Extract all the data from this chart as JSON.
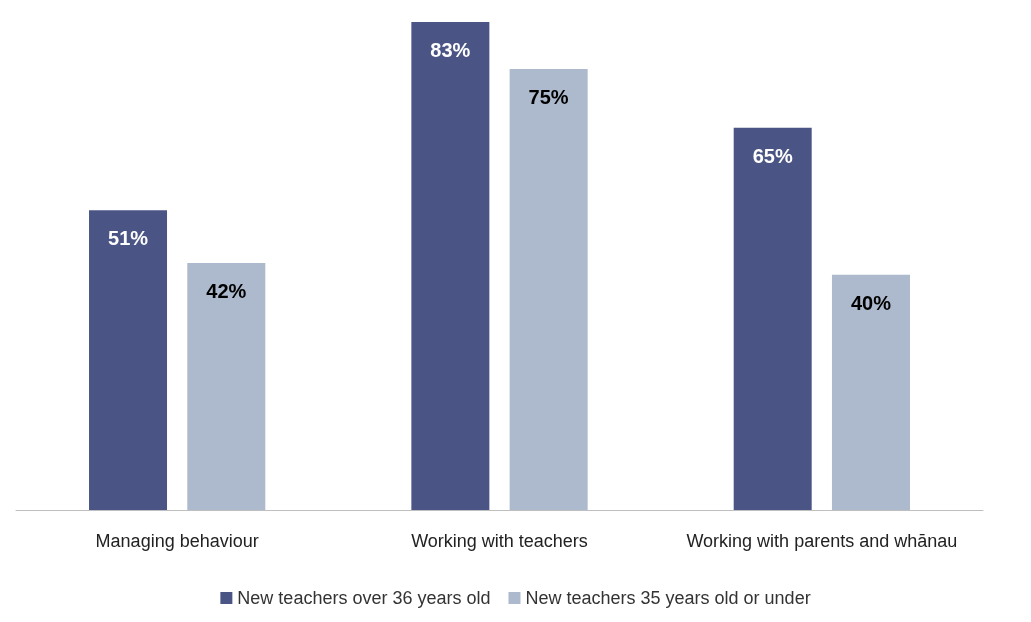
{
  "chart_data": {
    "type": "bar",
    "categories": [
      "Managing behaviour",
      "Working with teachers",
      "Working with parents and whānau"
    ],
    "series": [
      {
        "name": "New teachers over 36 years old",
        "color": "#4a5585",
        "values": [
          51,
          83,
          65
        ],
        "value_labels": [
          "51%",
          "83%",
          "65%"
        ]
      },
      {
        "name": "New teachers 35 years old or under",
        "color": "#adb9cc",
        "values": [
          42,
          75,
          40
        ],
        "value_labels": [
          "42%",
          "75%",
          "40%"
        ]
      }
    ],
    "legend": "bottom",
    "grid": false
  }
}
